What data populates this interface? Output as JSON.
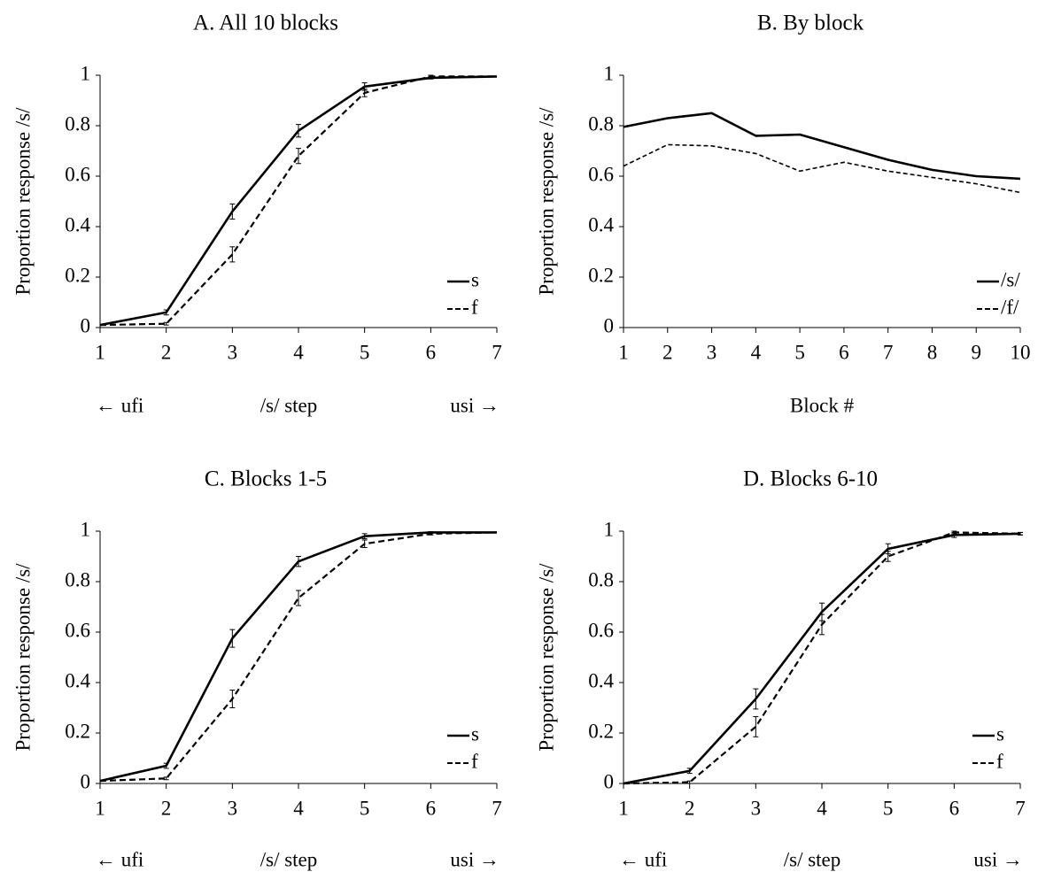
{
  "chart_data": [
    {
      "id": "A",
      "type": "line",
      "title": "A. All 10 blocks",
      "ylabel": "Proportion response /s/",
      "xlabel_left": "← ufi",
      "xlabel": "/s/ step",
      "xlabel_right": "usi →",
      "x": [
        1,
        2,
        3,
        4,
        5,
        6,
        7
      ],
      "xlim": [
        1,
        7
      ],
      "ylim": [
        0,
        1
      ],
      "yticks": [
        "0",
        "0.2",
        "0.4",
        "0.6",
        "0.8",
        "1"
      ],
      "xticks": [
        "1",
        "2",
        "3",
        "4",
        "5",
        "6",
        "7"
      ],
      "legend_position": "bottom-right",
      "error_bars": true,
      "series": [
        {
          "name": "s",
          "style": "solid",
          "values": [
            0.01,
            0.06,
            0.46,
            0.78,
            0.955,
            0.99,
            0.995
          ],
          "errors": [
            0,
            0.01,
            0.03,
            0.025,
            0.015,
            0.005,
            0
          ]
        },
        {
          "name": "f",
          "style": "dashed",
          "values": [
            0.01,
            0.015,
            0.29,
            0.68,
            0.93,
            0.995,
            0.995
          ],
          "errors": [
            0,
            0.005,
            0.03,
            0.03,
            0.015,
            0.005,
            0
          ]
        }
      ]
    },
    {
      "id": "B",
      "type": "line",
      "title": "B. By block",
      "ylabel": "Proportion response /s/",
      "xlabel": "Block #",
      "x": [
        1,
        2,
        3,
        4,
        5,
        6,
        7,
        8,
        9,
        10
      ],
      "xlim": [
        1,
        10
      ],
      "ylim": [
        0,
        1
      ],
      "yticks": [
        "0",
        "0.2",
        "0.4",
        "0.6",
        "0.8",
        "1"
      ],
      "xticks": [
        "1",
        "2",
        "3",
        "4",
        "5",
        "6",
        "7",
        "8",
        "9",
        "10"
      ],
      "legend_position": "bottom-right",
      "error_bars": false,
      "series": [
        {
          "name": "/s/",
          "style": "solid",
          "values": [
            0.795,
            0.83,
            0.85,
            0.76,
            0.765,
            0.715,
            0.665,
            0.625,
            0.6,
            0.59
          ]
        },
        {
          "name": "/f/",
          "style": "dashed",
          "values": [
            0.64,
            0.725,
            0.72,
            0.69,
            0.62,
            0.655,
            0.62,
            0.595,
            0.57,
            0.535
          ]
        }
      ]
    },
    {
      "id": "C",
      "type": "line",
      "title": "C. Blocks 1-5",
      "ylabel": "Proportion response /s/",
      "xlabel_left": "← ufi",
      "xlabel": "/s/ step",
      "xlabel_right": "usi →",
      "x": [
        1,
        2,
        3,
        4,
        5,
        6,
        7
      ],
      "xlim": [
        1,
        7
      ],
      "ylim": [
        0,
        1
      ],
      "yticks": [
        "0",
        "0.2",
        "0.4",
        "0.6",
        "0.8",
        "1"
      ],
      "xticks": [
        "1",
        "2",
        "3",
        "4",
        "5",
        "6",
        "7"
      ],
      "legend_position": "bottom-right",
      "error_bars": true,
      "series": [
        {
          "name": "s",
          "style": "solid",
          "values": [
            0.01,
            0.07,
            0.575,
            0.88,
            0.98,
            0.995,
            0.995
          ],
          "errors": [
            0,
            0.01,
            0.035,
            0.02,
            0.01,
            0.003,
            0
          ]
        },
        {
          "name": "f",
          "style": "dashed",
          "values": [
            0.01,
            0.02,
            0.335,
            0.735,
            0.95,
            0.99,
            0.995
          ],
          "errors": [
            0,
            0.005,
            0.035,
            0.03,
            0.015,
            0.005,
            0
          ]
        }
      ]
    },
    {
      "id": "D",
      "type": "line",
      "title": "D. Blocks 6-10",
      "ylabel": "Proportion response /s/",
      "xlabel_left": "← ufi",
      "xlabel": "/s/ step",
      "xlabel_right": "usi →",
      "x": [
        1,
        2,
        3,
        4,
        5,
        6,
        7
      ],
      "xlim": [
        1,
        7
      ],
      "ylim": [
        0,
        1
      ],
      "yticks": [
        "0",
        "0.2",
        "0.4",
        "0.6",
        "0.8",
        "1"
      ],
      "xticks": [
        "1",
        "2",
        "3",
        "4",
        "5",
        "6",
        "7"
      ],
      "legend_position": "bottom-right",
      "error_bars": true,
      "series": [
        {
          "name": "s",
          "style": "solid",
          "values": [
            0.0,
            0.05,
            0.335,
            0.68,
            0.93,
            0.985,
            0.99
          ],
          "errors": [
            0,
            0.01,
            0.04,
            0.035,
            0.02,
            0.01,
            0.005
          ]
        },
        {
          "name": "f",
          "style": "dashed",
          "values": [
            0.0,
            0.005,
            0.225,
            0.63,
            0.9,
            0.995,
            0.99
          ],
          "errors": [
            0,
            0.005,
            0.04,
            0.04,
            0.02,
            0.005,
            0.005
          ]
        }
      ]
    }
  ]
}
